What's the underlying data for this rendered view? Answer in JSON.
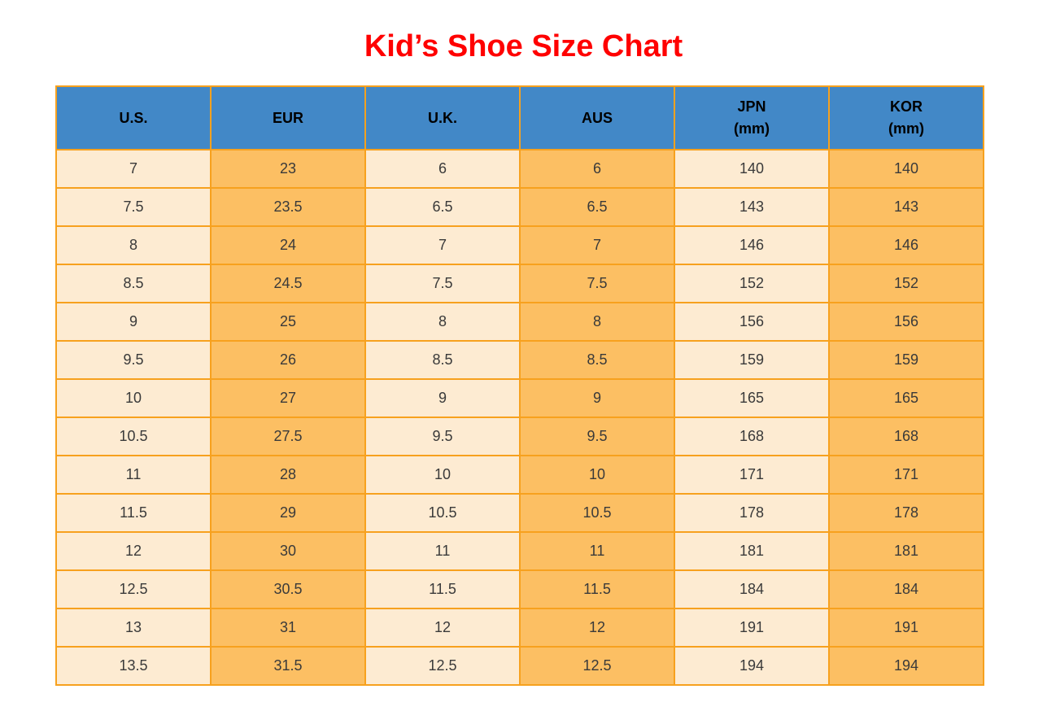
{
  "title": "Kid’s Shoe Size Chart",
  "colors": {
    "title": "#ff0000",
    "header_background": "#4288c7",
    "light_cell": "#fdebd2",
    "orange_cell": "#fcbf63",
    "grid_border": "#f7a11e",
    "cell_text": "#3a3a3a",
    "header_text": "#000000"
  },
  "chart_data": {
    "type": "table",
    "title": "Kid’s Shoe Size Chart",
    "columns": [
      {
        "label": "U.S.",
        "sublabel": "",
        "shade": "light"
      },
      {
        "label": "EUR",
        "sublabel": "",
        "shade": "orange"
      },
      {
        "label": "U.K.",
        "sublabel": "",
        "shade": "light"
      },
      {
        "label": "AUS",
        "sublabel": "",
        "shade": "orange"
      },
      {
        "label": "JPN",
        "sublabel": "(mm)",
        "shade": "light"
      },
      {
        "label": "KOR",
        "sublabel": "(mm)",
        "shade": "orange"
      }
    ],
    "rows": [
      [
        "7",
        "23",
        "6",
        "6",
        "140",
        "140"
      ],
      [
        "7.5",
        "23.5",
        "6.5",
        "6.5",
        "143",
        "143"
      ],
      [
        "8",
        "24",
        "7",
        "7",
        "146",
        "146"
      ],
      [
        "8.5",
        "24.5",
        "7.5",
        "7.5",
        "152",
        "152"
      ],
      [
        "9",
        "25",
        "8",
        "8",
        "156",
        "156"
      ],
      [
        "9.5",
        "26",
        "8.5",
        "8.5",
        "159",
        "159"
      ],
      [
        "10",
        "27",
        "9",
        "9",
        "165",
        "165"
      ],
      [
        "10.5",
        "27.5",
        "9.5",
        "9.5",
        "168",
        "168"
      ],
      [
        "11",
        "28",
        "10",
        "10",
        "171",
        "171"
      ],
      [
        "11.5",
        "29",
        "10.5",
        "10.5",
        "178",
        "178"
      ],
      [
        "12",
        "30",
        "11",
        "11",
        "181",
        "181"
      ],
      [
        "12.5",
        "30.5",
        "11.5",
        "11.5",
        "184",
        "184"
      ],
      [
        "13",
        "31",
        "12",
        "12",
        "191",
        "191"
      ],
      [
        "13.5",
        "31.5",
        "12.5",
        "12.5",
        "194",
        "194"
      ]
    ]
  }
}
